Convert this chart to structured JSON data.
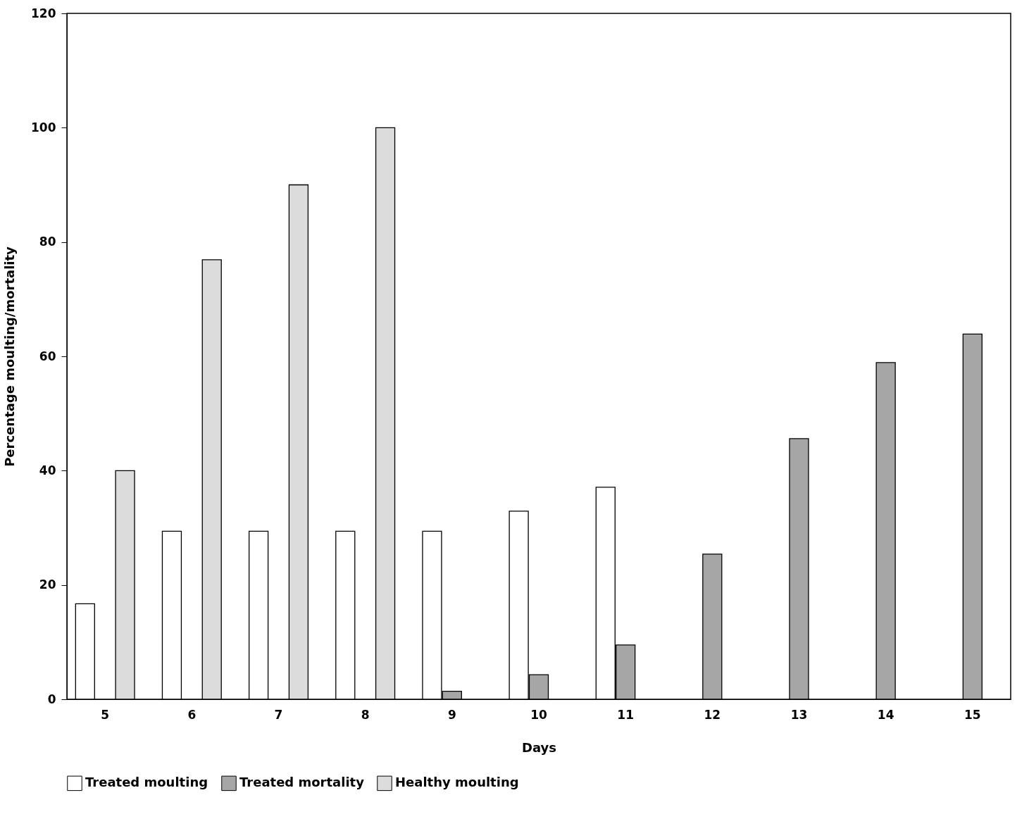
{
  "chart_data": {
    "type": "bar",
    "xlabel": "Days",
    "ylabel": "Percentage moulting/mortality",
    "categories": [
      "5",
      "6",
      "7",
      "8",
      "9",
      "10",
      "11",
      "12",
      "13",
      "14",
      "15"
    ],
    "series": [
      {
        "name": "Treated moulting",
        "color": "#ffffff",
        "values": [
          16.7,
          29.4,
          29.4,
          29.4,
          29.4,
          32.9,
          37.1,
          null,
          null,
          null,
          null
        ]
      },
      {
        "name": "Treated mortality",
        "color": "#a6a6a6",
        "values": [
          null,
          null,
          null,
          null,
          1.4,
          4.3,
          9.5,
          25.4,
          45.6,
          58.9,
          63.9
        ]
      },
      {
        "name": "Healthy moulting",
        "color": "#dcdcdc",
        "values": [
          40,
          76.9,
          90,
          100,
          null,
          null,
          null,
          null,
          null,
          null,
          null
        ]
      }
    ],
    "ylim": [
      0,
      120
    ],
    "yticks": [
      0,
      20,
      40,
      60,
      80,
      100,
      120
    ],
    "grid": false,
    "legend": "bottom"
  }
}
